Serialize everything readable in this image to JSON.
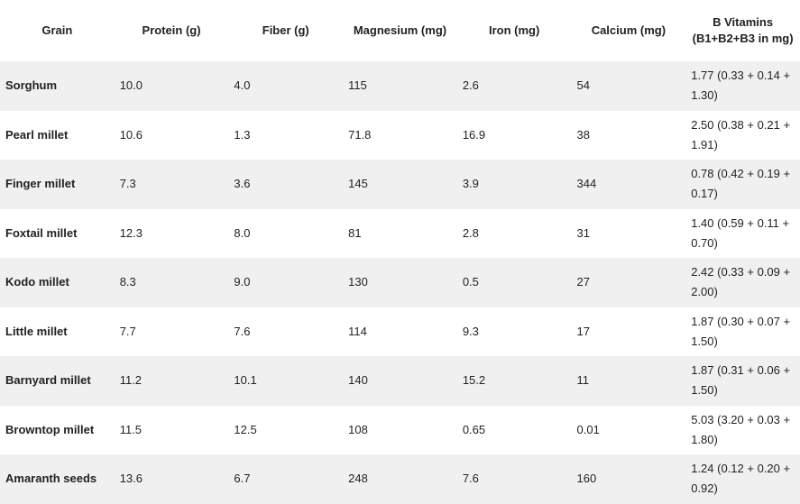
{
  "table": {
    "headers": [
      "Grain",
      "Protein (g)",
      "Fiber (g)",
      "Magnesium (mg)",
      "Iron (mg)",
      "Calcium (mg)",
      "B Vitamins (B1+B2+B3 in mg)"
    ],
    "rows": [
      [
        "Sorghum",
        "10.0",
        "4.0",
        "115",
        "2.6",
        "54",
        "1.77 (0.33 + 0.14 + 1.30)"
      ],
      [
        "Pearl millet",
        "10.6",
        "1.3",
        "71.8",
        "16.9",
        "38",
        "2.50 (0.38 + 0.21 + 1.91)"
      ],
      [
        "Finger millet",
        "7.3",
        "3.6",
        "145",
        "3.9",
        "344",
        "0.78 (0.42 + 0.19 + 0.17)"
      ],
      [
        "Foxtail millet",
        "12.3",
        "8.0",
        "81",
        "2.8",
        "31",
        "1.40 (0.59 + 0.11 + 0.70)"
      ],
      [
        "Kodo millet",
        "8.3",
        "9.0",
        "130",
        "0.5",
        "27",
        "2.42 (0.33 + 0.09 + 2.00)"
      ],
      [
        "Little millet",
        "7.7",
        "7.6",
        "114",
        "9.3",
        "17",
        "1.87 (0.30 + 0.07 + 1.50)"
      ],
      [
        "Barnyard millet",
        "11.2",
        "10.1",
        "140",
        "15.2",
        "11",
        "1.87 (0.31 + 0.06 + 1.50)"
      ],
      [
        "Browntop millet",
        "11.5",
        "12.5",
        "108",
        "0.65",
        "0.01",
        "5.03 (3.20 + 0.03 + 1.80)"
      ],
      [
        "Amaranth seeds",
        "13.6",
        "6.7",
        "248",
        "7.6",
        "160",
        "1.24 (0.12 + 0.20 + 0.92)"
      ]
    ]
  }
}
